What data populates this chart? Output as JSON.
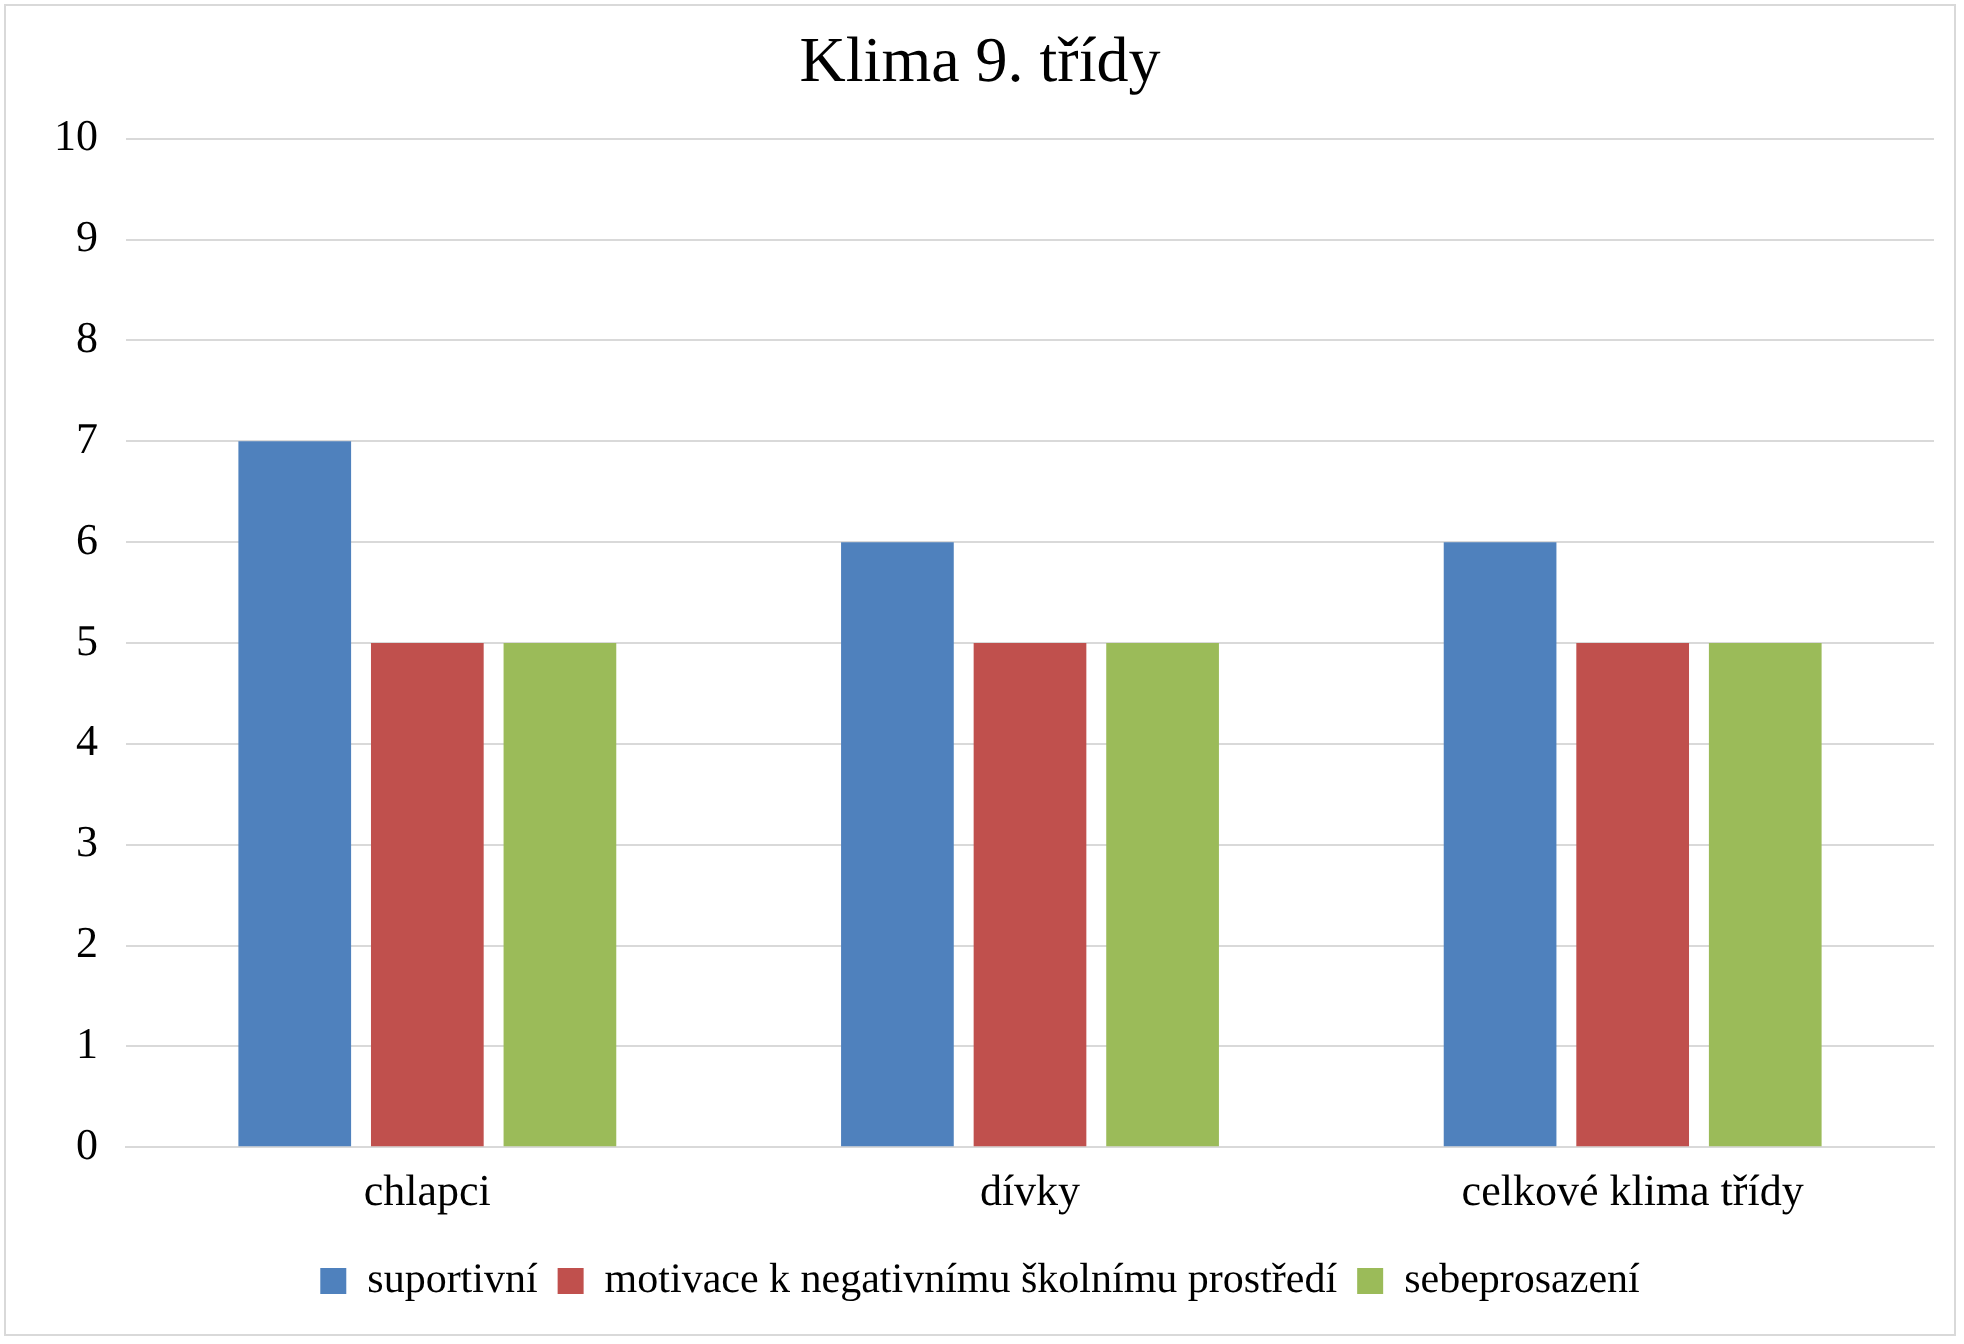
{
  "chart_data": {
    "type": "bar",
    "title": "Klima 9. třídy",
    "categories": [
      "chlapci",
      "dívky",
      "celkové klima třídy"
    ],
    "series": [
      {
        "name": "suportivní",
        "color": "#4f81bd",
        "values": [
          7,
          6,
          6
        ]
      },
      {
        "name": "motivace k negativnímu školnímu prostředí",
        "color": "#c0504d",
        "values": [
          5,
          5,
          5
        ]
      },
      {
        "name": "sebeprosazení",
        "color": "#9bbb59",
        "values": [
          5,
          5,
          5
        ]
      }
    ],
    "ylim": [
      0,
      10
    ],
    "yticks": [
      0,
      1,
      2,
      3,
      4,
      5,
      6,
      7,
      8,
      9,
      10
    ],
    "grid": "y",
    "legend": "bottom"
  }
}
